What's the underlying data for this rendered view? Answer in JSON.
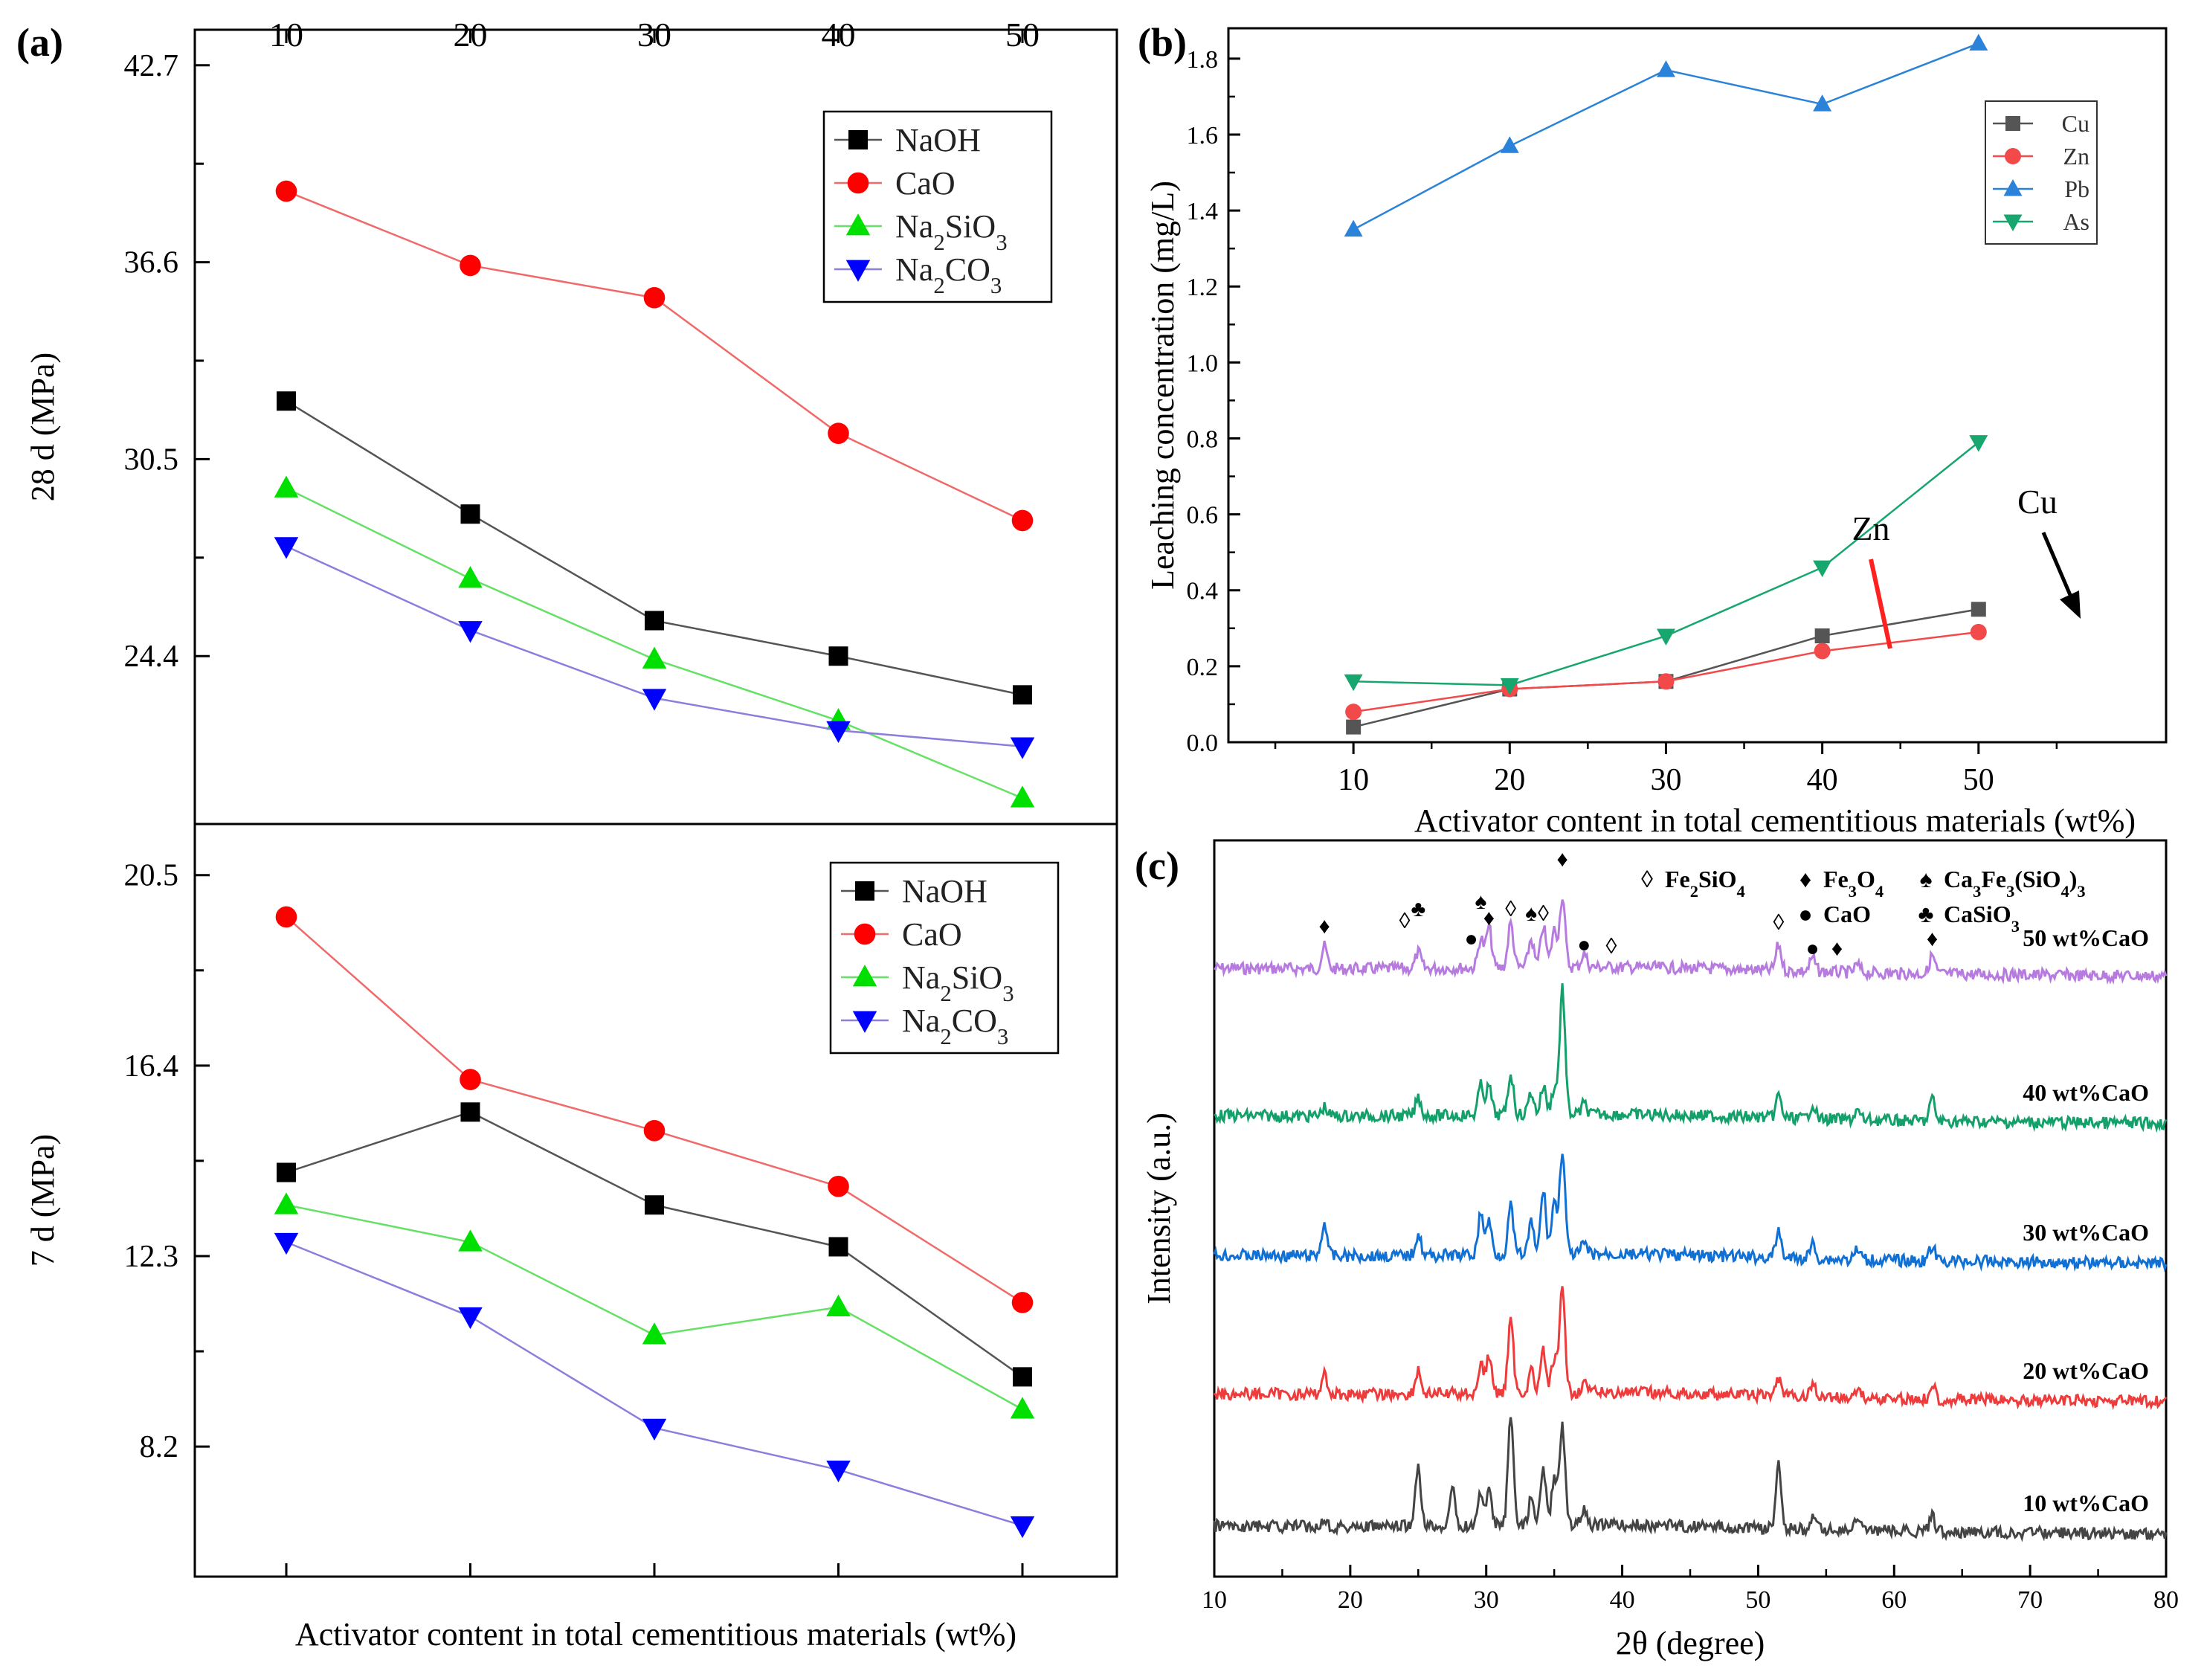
{
  "chart_data": [
    {
      "panel": "(a)",
      "type": "line",
      "title": "",
      "xlabel": "Activator content in total cementitious materials (wt%)",
      "x": [
        10,
        20,
        30,
        40,
        50
      ],
      "subplots": [
        {
          "ylabel": "28 d (MPa)",
          "ylim": [
            19.2,
            43.8
          ],
          "yticks": [
            24.4,
            30.5,
            36.6,
            42.7
          ],
          "ytick_labels": [
            "24.4",
            "30.5",
            "36.6",
            "42.7"
          ],
          "legend_position": "top-right",
          "series": [
            {
              "name": "NaOH",
              "html_name": "NaOH",
              "marker": "square",
              "line_color": "#555555",
              "marker_color": "#000000",
              "values": [
                32.3,
                28.8,
                25.5,
                24.4,
                23.2
              ]
            },
            {
              "name": "CaO",
              "html_name": "CaO",
              "marker": "circle",
              "line_color": "#f06a6a",
              "marker_color": "#ff0000",
              "values": [
                38.8,
                36.5,
                35.5,
                31.3,
                28.6
              ]
            },
            {
              "name": "Na2SiO3",
              "html_name": "Na<tspan baseline-shift='sub' font-size='70%'>2</tspan>SiO<tspan baseline-shift='sub' font-size='70%'>3</tspan>",
              "marker": "triangle-up",
              "line_color": "#66e066",
              "marker_color": "#00e000",
              "values": [
                29.6,
                26.8,
                24.3,
                22.4,
                20.0
              ]
            },
            {
              "name": "Na2CO3",
              "html_name": "Na<tspan baseline-shift='sub' font-size='70%'>2</tspan>CO<tspan baseline-shift='sub' font-size='70%'>3</tspan>",
              "marker": "triangle-down",
              "line_color": "#8a7fdc",
              "marker_color": "#0000ff",
              "values": [
                27.8,
                25.2,
                23.1,
                22.1,
                21.6
              ]
            }
          ]
        },
        {
          "ylabel": "7 d (MPa)",
          "ylim": [
            5.4,
            21.6
          ],
          "yticks": [
            8.2,
            12.3,
            16.4,
            20.5
          ],
          "ytick_labels": [
            "8.2",
            "12.3",
            "16.4",
            "20.5"
          ],
          "legend_position": "top-right",
          "series": [
            {
              "name": "NaOH",
              "html_name": "NaOH",
              "marker": "square",
              "line_color": "#555555",
              "marker_color": "#000000",
              "values": [
                14.1,
                15.4,
                13.4,
                12.5,
                9.7
              ]
            },
            {
              "name": "CaO",
              "html_name": "CaO",
              "marker": "circle",
              "line_color": "#f06a6a",
              "marker_color": "#ff0000",
              "values": [
                19.6,
                16.1,
                15.0,
                13.8,
                11.3
              ]
            },
            {
              "name": "Na2SiO3",
              "html_name": "Na<tspan baseline-shift='sub' font-size='70%'>2</tspan>SiO<tspan baseline-shift='sub' font-size='70%'>3</tspan>",
              "marker": "triangle-up",
              "line_color": "#66e066",
              "marker_color": "#00e000",
              "values": [
                13.4,
                12.6,
                10.6,
                11.2,
                9.0
              ]
            },
            {
              "name": "Na2CO3",
              "html_name": "Na<tspan baseline-shift='sub' font-size='70%'>2</tspan>CO<tspan baseline-shift='sub' font-size='70%'>3</tspan>",
              "marker": "triangle-down",
              "line_color": "#8a7fdc",
              "marker_color": "#0000ff",
              "values": [
                12.6,
                11.0,
                8.6,
                7.7,
                6.5
              ]
            }
          ]
        }
      ],
      "top_tick_labels": [
        "10",
        "20",
        "30",
        "40",
        "50"
      ]
    },
    {
      "panel": "(b)",
      "type": "line",
      "title": "",
      "xlabel": "Activator content in total cementitious materials (wt%)",
      "ylabel": "Leaching concentration (mg/L)",
      "x": [
        10,
        20,
        30,
        40,
        50
      ],
      "xlim": [
        2,
        62
      ],
      "ylim": [
        0,
        1.88
      ],
      "yticks": [
        0,
        0.2,
        0.4,
        0.6,
        0.8,
        1.0,
        1.2,
        1.4,
        1.6,
        1.8
      ],
      "ytick_labels": [
        "0.0",
        "0.2",
        "0.4",
        "0.6",
        "0.8",
        "1.0",
        "1.2",
        "1.4",
        "1.6",
        "1.8"
      ],
      "xtick_labels": [
        "10",
        "20",
        "30",
        "40",
        "50"
      ],
      "legend_position": "top-right",
      "series": [
        {
          "name": "Cu",
          "marker": "square",
          "color": "#555555",
          "values": [
            0.04,
            0.14,
            0.16,
            0.28,
            0.35
          ]
        },
        {
          "name": "Zn",
          "marker": "circle",
          "color": "#f24a4a",
          "values": [
            0.08,
            0.14,
            0.16,
            0.24,
            0.29
          ]
        },
        {
          "name": "Pb",
          "marker": "triangle-up",
          "color": "#2a83d8",
          "values": [
            1.35,
            1.57,
            1.77,
            1.68,
            1.84
          ]
        },
        {
          "name": "As",
          "marker": "triangle-down",
          "color": "#16a66e",
          "values": [
            0.16,
            0.15,
            0.28,
            0.46,
            0.79
          ]
        }
      ],
      "annotations": [
        "Zn",
        "Cu"
      ]
    },
    {
      "panel": "(c)",
      "type": "line",
      "title": "",
      "xlabel": "2θ (degree)",
      "ylabel": "Intensity (a.u.)",
      "xlim": [
        10,
        80
      ],
      "xtick_labels": [
        "10",
        "20",
        "30",
        "40",
        "50",
        "60",
        "70",
        "80"
      ],
      "series": [
        {
          "name": "50 wt%CaO",
          "color": "#b77be0"
        },
        {
          "name": "40 wt%CaO",
          "color": "#14a06a"
        },
        {
          "name": "30 wt%CaO",
          "color": "#1170d4"
        },
        {
          "name": "20 wt%CaO",
          "color": "#ee3b3b"
        },
        {
          "name": "10 wt%CaO",
          "color": "#444444"
        }
      ],
      "peaks_2theta": [
        18.1,
        25.0,
        27.5,
        29.6,
        30.2,
        31.8,
        33.3,
        34.2,
        35.0,
        35.6,
        37.2,
        51.5,
        54.0,
        57.3,
        62.8
      ],
      "legend": [
        "Fe2SiO4",
        "Fe3O4",
        "Ca3Fe3(SiO4)3",
        "CaO",
        "CaSiO3"
      ],
      "legend_symbols": [
        "◊",
        "♦",
        "♠",
        "●",
        "♣"
      ]
    }
  ],
  "panel_labels": {
    "a": "(a)",
    "b": "(b)",
    "c": "(c)"
  }
}
